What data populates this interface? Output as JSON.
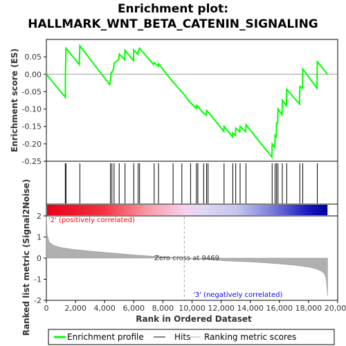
{
  "chart_data": {
    "type": "line",
    "title_line1": "Enrichment plot:",
    "title_line2": "HALLMARK_WNT_BETA_CATENIN_SIGNALING",
    "es_ylabel": "Enrichment score (ES)",
    "metric_ylabel": "Ranked list metric (Signal2Noise)",
    "xlabel": "Rank in Ordered Dataset",
    "x_ticks": [
      "0",
      "2,000",
      "4,000",
      "6,000",
      "8,000",
      "10,000",
      "12,000",
      "14,000",
      "16,000",
      "18,000",
      "20,000"
    ],
    "x_tick_values": [
      0,
      2000,
      4000,
      6000,
      8000,
      10000,
      12000,
      14000,
      16000,
      18000,
      20000
    ],
    "es_ticks": [
      "0.05",
      "0.00",
      "-0.05",
      "-0.10",
      "-0.15",
      "-0.20",
      "-0.25"
    ],
    "es_tick_values": [
      0.05,
      0.0,
      -0.05,
      -0.1,
      -0.15,
      -0.2,
      -0.25
    ],
    "metric_ticks": [
      "2",
      "1",
      "0",
      "-1",
      "-2"
    ],
    "metric_tick_values": [
      2,
      1,
      0,
      -1,
      -2
    ],
    "xlim": [
      0,
      20000
    ],
    "es_ylim": [
      -0.25,
      0.1
    ],
    "metric_ylim": [
      -2,
      2
    ],
    "total_ranks": 19300,
    "zero_cross_text": "Zero cross at 9469",
    "zero_cross": 9469,
    "pos_label": "'2' (positively correlated)",
    "neg_label": "'3' (negatively correlated)",
    "legend": {
      "enrichment": "Enrichment profile",
      "hits": "Hits",
      "ranking": "Ranking metric scores"
    },
    "colors": {
      "enrichment": "#00ff00",
      "hits": "#000000",
      "ranking": "#b0b0b0",
      "pos_text": "#ff0000",
      "neg_text": "#0000ff"
    },
    "hits": [
      1300,
      1350,
      2300,
      4400,
      4500,
      4650,
      5000,
      5400,
      6000,
      6300,
      6400,
      7400,
      7700,
      8700,
      9300,
      9900,
      10300,
      10400,
      10800,
      11000,
      11100,
      12200,
      12800,
      13000,
      13300,
      13700,
      15500,
      15700,
      15800,
      15900,
      16200,
      16500,
      17400,
      17600,
      18600
    ],
    "es_curve": {
      "x": [
        0,
        1300,
        1310,
        1350,
        2260,
        2300,
        4350,
        4400,
        4450,
        4500,
        4620,
        4650,
        4980,
        5000,
        5380,
        5400,
        5980,
        6000,
        6280,
        6300,
        6400,
        7350,
        7400,
        7680,
        7700,
        8680,
        8700,
        9280,
        9300,
        9880,
        9900,
        10280,
        10300,
        10380,
        10400,
        10780,
        10800,
        10980,
        11000,
        11080,
        11100,
        12180,
        12200,
        12780,
        12800,
        12980,
        13000,
        13280,
        13300,
        13680,
        13700,
        15480,
        15500,
        15680,
        15700,
        15780,
        15800,
        15880,
        15900,
        16180,
        16200,
        16480,
        16500,
        17380,
        17400,
        17580,
        17600,
        18580,
        18600,
        19300
      ],
      "y": [
        0.0,
        -0.066,
        0.002,
        0.075,
        0.028,
        0.082,
        -0.03,
        -0.02,
        0.005,
        0.005,
        0.016,
        0.032,
        0.043,
        0.058,
        0.042,
        0.069,
        0.039,
        0.07,
        0.057,
        0.065,
        0.075,
        0.028,
        0.034,
        0.023,
        0.03,
        -0.022,
        -0.022,
        -0.05,
        -0.05,
        -0.082,
        -0.082,
        -0.098,
        -0.09,
        -0.094,
        -0.092,
        -0.112,
        -0.112,
        -0.118,
        -0.104,
        -0.108,
        -0.108,
        -0.164,
        -0.15,
        -0.18,
        -0.168,
        -0.176,
        -0.155,
        -0.165,
        -0.15,
        -0.165,
        -0.145,
        -0.238,
        -0.2,
        -0.21,
        -0.176,
        -0.18,
        -0.14,
        -0.14,
        -0.1,
        -0.116,
        -0.075,
        -0.09,
        -0.043,
        -0.086,
        -0.035,
        -0.04,
        0.015,
        -0.04,
        0.036,
        0.0
      ]
    },
    "metric_curve": {
      "x": [
        0,
        50,
        200,
        500,
        1000,
        2000,
        3000,
        4000,
        5000,
        6000,
        7000,
        8000,
        9000,
        9469,
        10000,
        11000,
        12000,
        13000,
        14000,
        15000,
        16000,
        17000,
        18000,
        18500,
        18900,
        19100,
        19200,
        19250,
        19300
      ],
      "y": [
        2.0,
        1.1,
        0.75,
        0.6,
        0.5,
        0.4,
        0.33,
        0.27,
        0.21,
        0.15,
        0.1,
        0.06,
        0.02,
        0.0,
        -0.03,
        -0.07,
        -0.11,
        -0.15,
        -0.18,
        -0.22,
        -0.27,
        -0.33,
        -0.42,
        -0.5,
        -0.62,
        -0.75,
        -0.95,
        -1.3,
        -1.8
      ]
    }
  }
}
